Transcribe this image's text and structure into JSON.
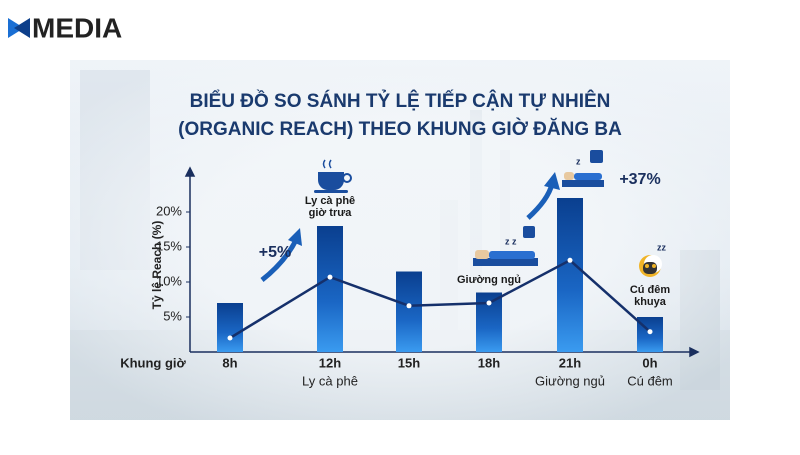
{
  "logo": "MEDIA",
  "chart_data": {
    "type": "bar",
    "title": [
      "BIỂU ĐỒ SO SÁNH TỶ LỆ TIẾP CẬN TỰ NHIÊN",
      "(ORGANIC REACH) THEO KHUNG GIỜ ĐĂNG BA"
    ],
    "x_label": "Khung giờ",
    "y_label": "Tỷ lệ Reach (%)",
    "categories": [
      "8h",
      "12h",
      "15h",
      "18h",
      "21h",
      "0h"
    ],
    "sublabels": [
      null,
      "Ly cà phê",
      null,
      null,
      "Giường ngủ",
      "Cú đêm"
    ],
    "series": [
      {
        "type": "bar",
        "color": "#0d4ea6",
        "values": [
          7,
          18,
          11.5,
          8.5,
          22,
          5
        ]
      },
      {
        "type": "line",
        "color": "#15306b",
        "values": [
          2,
          10.7,
          6.6,
          7,
          13.1,
          2.9
        ]
      }
    ],
    "ylim": [
      0,
      25
    ],
    "yticks": [
      {
        "value": 5,
        "label": "5%"
      },
      {
        "value": 10,
        "label": "10%"
      },
      {
        "value": 15,
        "label": "15%"
      },
      {
        "value": 20,
        "label": "20%"
      }
    ],
    "annotations": [
      "+5%",
      "+37%"
    ],
    "icon_labels": [
      [
        "Ly cà phê",
        "giờ trưa"
      ],
      [
        "Giường ngủ"
      ],
      [
        "Cú đêm",
        "khuya"
      ]
    ]
  }
}
